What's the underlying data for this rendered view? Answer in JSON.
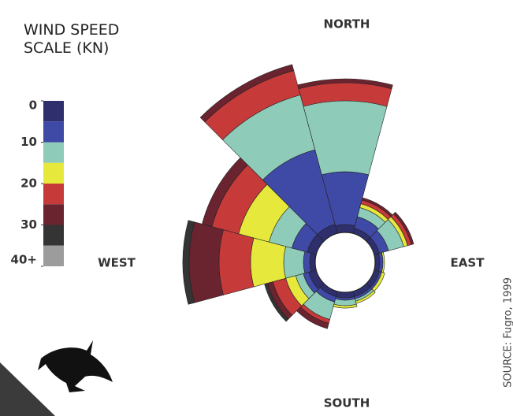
{
  "chart_data": {
    "type": "windrose",
    "title": "WIND SPEED SCALE (KN)",
    "directions": [
      "NORTH",
      "EAST",
      "SOUTH",
      "WEST"
    ],
    "source": "SOURCE: Fugro, 1999",
    "categories": [
      null,
      null,
      null,
      null,
      null,
      null,
      null,
      null,
      null,
      null,
      null,
      null
    ],
    "series": [
      {
        "color": "#2e2f6c",
        "values": [
          10,
          7,
          7,
          6,
          7,
          7,
          7,
          7,
          10,
          7,
          12,
          12
        ]
      },
      {
        "color": "#3f49a6",
        "values": [
          67,
          15,
          12,
          4,
          3,
          3,
          3,
          7,
          7,
          8,
          20,
          98
        ]
      },
      {
        "color": "#8ecbb9",
        "values": [
          90,
          12,
          20,
          0,
          0,
          3,
          7,
          23,
          10,
          25,
          30,
          72
        ]
      },
      {
        "color": "#e6e93c",
        "values": [
          0,
          5,
          5,
          2,
          4,
          3,
          3,
          0,
          13,
          42,
          40,
          0
        ]
      },
      {
        "color": "#c73a3a",
        "values": [
          23,
          5,
          5,
          0,
          0,
          0,
          0,
          5,
          17,
          40,
          35,
          32
        ]
      },
      {
        "color": "#6a2430",
        "values": [
          5,
          3,
          3,
          0,
          0,
          0,
          0,
          7,
          7,
          38,
          13,
          8
        ]
      },
      {
        "color": "#343434",
        "values": [
          0,
          0,
          0,
          0,
          0,
          0,
          0,
          0,
          4,
          8,
          0,
          0
        ]
      },
      {
        "color": "#9c9c9c",
        "values": [
          0,
          0,
          0,
          0,
          0,
          0,
          0,
          0,
          0,
          0,
          0,
          0
        ]
      }
    ],
    "scale_lim": [
      0,
      40
    ],
    "scale_ticks": [
      0,
      10,
      20,
      30,
      {
        "value": 40,
        "label": "40+"
      }
    ]
  }
}
